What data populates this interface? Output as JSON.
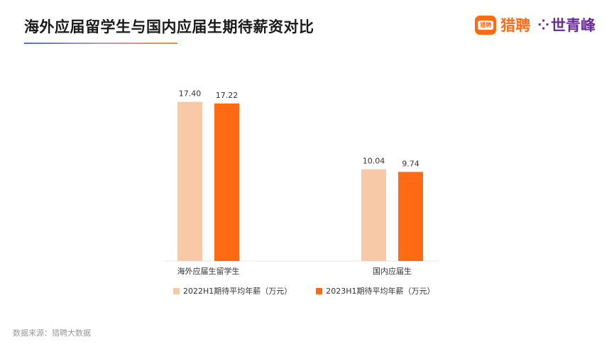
{
  "header": {
    "title": "海外应届留学生与国内应届生期待薪资对比",
    "logo_badge_text": "猎聘",
    "logo_text_1": "猎聘",
    "logo_mark": "⁘",
    "logo_text_2": "世青峰"
  },
  "chart_data": {
    "type": "bar",
    "categories": [
      "海外应届生留学生",
      "国内应届生"
    ],
    "series": [
      {
        "name": "2022H1期待平均年薪（万元）",
        "values": [
          17.4,
          10.04
        ],
        "labels": [
          "17.40",
          "10.04"
        ],
        "color": "#f8c9a6"
      },
      {
        "name": "2023H1期待平均年薪（万元）",
        "values": [
          17.22,
          9.74
        ],
        "labels": [
          "17.22",
          "9.74"
        ],
        "color": "#ff6a13"
      }
    ],
    "title": "海外应届留学生与国内应届生期待薪资对比",
    "ylim": [
      0,
      18.3
    ],
    "grid": false,
    "legend_position": "bottom"
  },
  "footer": {
    "source": "数据来源：猎聘大数据"
  }
}
